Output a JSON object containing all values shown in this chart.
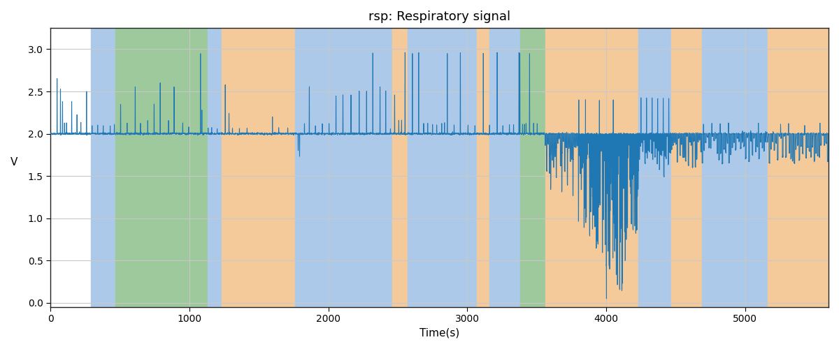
{
  "title": "rsp: Respiratory signal",
  "xlabel": "Time(s)",
  "ylabel": "V",
  "xlim": [
    0,
    5600
  ],
  "ylim": [
    -0.05,
    3.25
  ],
  "yticks": [
    0.0,
    0.5,
    1.0,
    1.5,
    2.0,
    2.5,
    3.0
  ],
  "xticks": [
    0,
    1000,
    2000,
    3000,
    4000,
    5000
  ],
  "line_color": "#1f77b4",
  "bg_color": "#ffffff",
  "band_blue": "#adc9e9",
  "band_green": "#9dc99d",
  "band_orange": "#f5ca9a",
  "bands": [
    [
      290,
      470,
      "blue"
    ],
    [
      470,
      1130,
      "green"
    ],
    [
      1130,
      1230,
      "blue"
    ],
    [
      1230,
      1760,
      "orange"
    ],
    [
      1760,
      1860,
      "blue"
    ],
    [
      1860,
      2460,
      "blue"
    ],
    [
      2460,
      2570,
      "orange"
    ],
    [
      2570,
      3070,
      "blue"
    ],
    [
      3070,
      3160,
      "orange"
    ],
    [
      3160,
      3380,
      "blue"
    ],
    [
      3380,
      3560,
      "green"
    ],
    [
      3560,
      3800,
      "orange"
    ],
    [
      3800,
      4230,
      "orange"
    ],
    [
      4230,
      4470,
      "blue"
    ],
    [
      4470,
      4690,
      "orange"
    ],
    [
      4690,
      5160,
      "blue"
    ],
    [
      5160,
      5600,
      "orange"
    ]
  ],
  "figsize": [
    12.0,
    5.0
  ],
  "dpi": 100
}
